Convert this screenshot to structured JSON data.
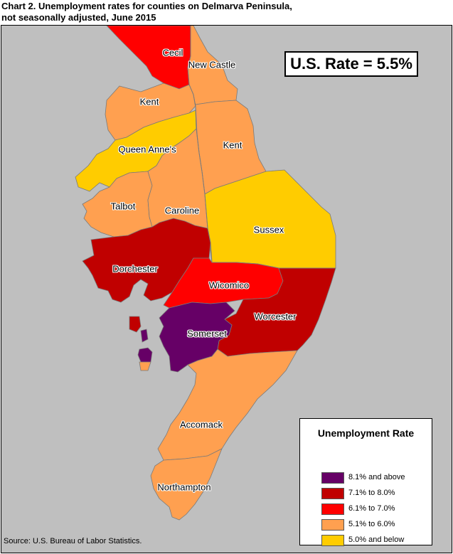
{
  "title": {
    "line1": "Chart 2. Unemployment rates for counties on Delmarva Peninsula,",
    "line2": "not seasonally adjusted, June 2015"
  },
  "us_rate": "U.S. Rate = 5.5%",
  "legend": {
    "title": "Unemployment Rate",
    "items": [
      {
        "label": "8.1% and above",
        "color": "#660066"
      },
      {
        "label": "7.1% to 8.0%",
        "color": "#c00000"
      },
      {
        "label": "6.1% to 7.0%",
        "color": "#ff0000"
      },
      {
        "label": "5.1% to 6.0%",
        "color": "#ffa050"
      },
      {
        "label": "5.0% and below",
        "color": "#ffcc00"
      }
    ]
  },
  "counties": [
    {
      "name": "Cecil",
      "category": 2
    },
    {
      "name": "New Castle",
      "category": 3
    },
    {
      "name": "Kent",
      "category": 3
    },
    {
      "name": "Queen Anne's",
      "category": 4
    },
    {
      "name": "Kent",
      "category": 3
    },
    {
      "name": "Talbot",
      "category": 3
    },
    {
      "name": "Caroline",
      "category": 3
    },
    {
      "name": "Sussex",
      "category": 4
    },
    {
      "name": "Dorchester",
      "category": 1
    },
    {
      "name": "Wicomico",
      "category": 2
    },
    {
      "name": "Worcester",
      "category": 1
    },
    {
      "name": "Somerset",
      "category": 0
    },
    {
      "name": "Accomack",
      "category": 3
    },
    {
      "name": "Northampton",
      "category": 3
    }
  ],
  "source": "Source: U.S. Bureau of Labor Statistics."
}
